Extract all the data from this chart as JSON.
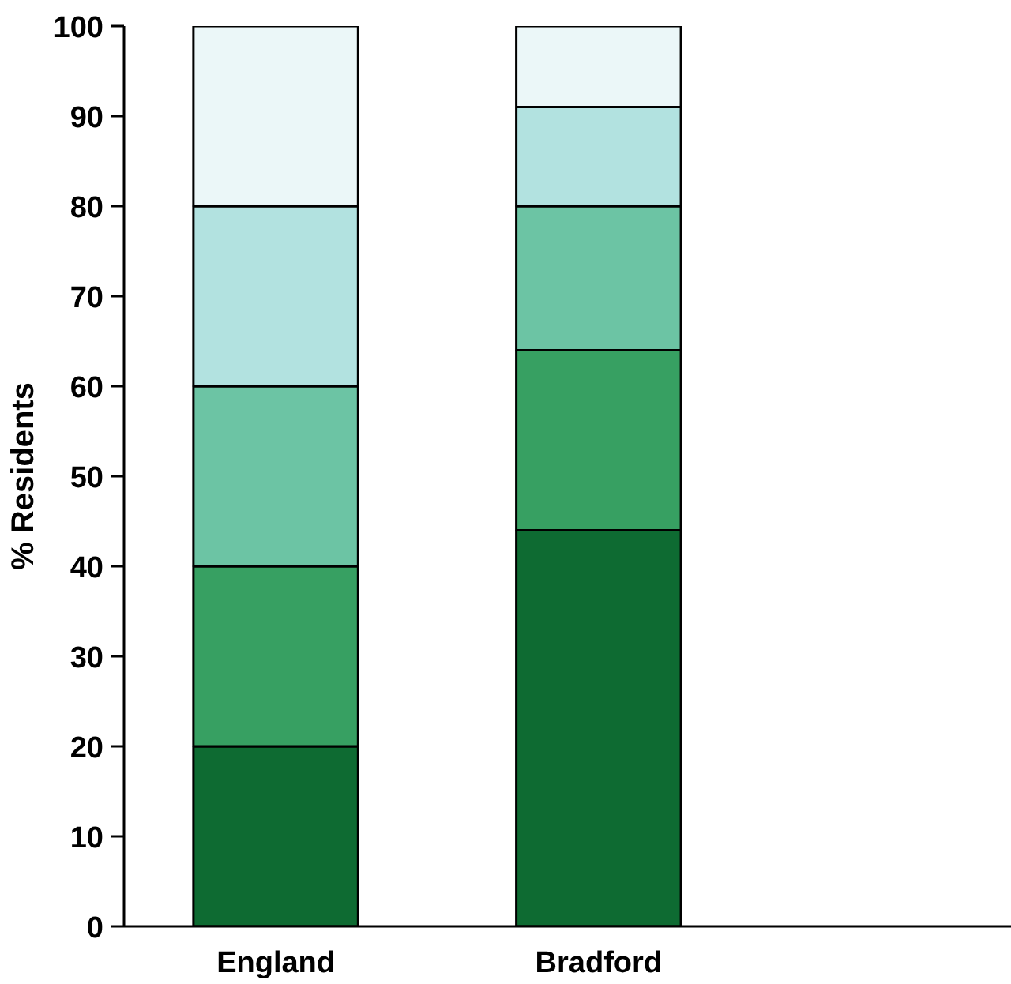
{
  "chart_data": {
    "type": "bar",
    "stacked": true,
    "ylabel": "% Residents",
    "categories": [
      "England",
      "Bradford"
    ],
    "series": [
      {
        "color": "#0e6b32",
        "values": [
          20,
          44
        ]
      },
      {
        "color": "#37a062",
        "values": [
          20,
          20
        ]
      },
      {
        "color": "#6cc4a4",
        "values": [
          20,
          16
        ]
      },
      {
        "color": "#b2e2e0",
        "values": [
          20,
          11
        ]
      },
      {
        "color": "#ebf7f8",
        "values": [
          20,
          9
        ]
      }
    ],
    "ylim": [
      0,
      100
    ],
    "yticks": [
      0,
      10,
      20,
      30,
      40,
      50,
      60,
      70,
      80,
      90,
      100
    ],
    "grid": false
  }
}
